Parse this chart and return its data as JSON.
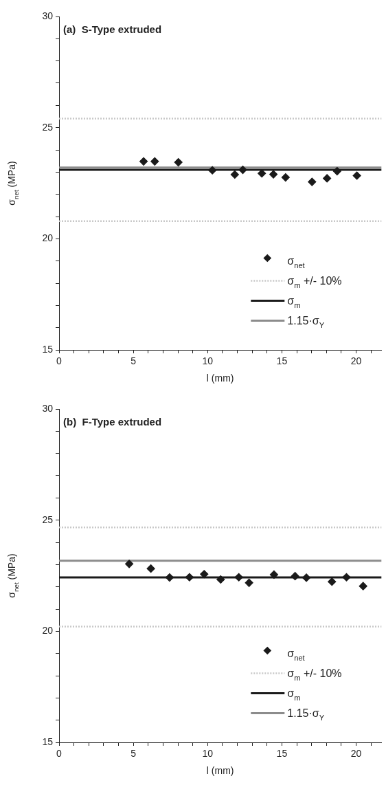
{
  "chart_data": [
    {
      "type": "scatter",
      "title": "(a)  S-Type extruded",
      "xlabel": "l (mm)",
      "ylabel": "σ$_{net}$ (MPa)",
      "series": [
        {
          "name": "σ$_{net}$",
          "color": "#1a1a1a",
          "x": [
            5.69,
            6.44,
            8.03,
            10.32,
            11.83,
            12.37,
            13.65,
            14.43,
            15.25,
            17.03,
            18.04,
            18.72,
            20.05
          ],
          "values": [
            23.48,
            23.48,
            23.44,
            23.08,
            22.89,
            23.1,
            22.94,
            22.9,
            22.76,
            22.56,
            22.72,
            23.04,
            22.84
          ]
        }
      ],
      "ref_lines": [
        {
          "axis": "y",
          "value": 25.41,
          "label": "σ$_{m}$ +/- 10%",
          "color": "#c8c8c8",
          "line_style": "dotted"
        },
        {
          "axis": "y",
          "value": 20.79,
          "color": "#c8c8c8",
          "line_style": "dotted"
        },
        {
          "axis": "y",
          "value": 23.1,
          "label": "σ$_{m}$",
          "color": "#1a1a1a",
          "line_style": "solid"
        },
        {
          "axis": "y",
          "value": 23.2,
          "label": "1.15·σ$_{Y}$",
          "color": "#8c8c8c",
          "line_style": "solid"
        }
      ],
      "xlim": [
        0,
        21.7
      ],
      "ylim": [
        15,
        30
      ],
      "xticks": [
        0,
        {
          "value": 1,
          "label": null
        },
        {
          "value": 2,
          "label": null
        },
        {
          "value": 3,
          "label": null
        },
        {
          "value": 4,
          "label": null
        },
        5,
        {
          "value": 6,
          "label": null
        },
        {
          "value": 7,
          "label": null
        },
        {
          "value": 8,
          "label": null
        },
        {
          "value": 9,
          "label": null
        },
        10,
        {
          "value": 11,
          "label": null
        },
        {
          "value": 12,
          "label": null
        },
        {
          "value": 13,
          "label": null
        },
        {
          "value": 14,
          "label": null
        },
        15,
        {
          "value": 16,
          "label": null
        },
        {
          "value": 17,
          "label": null
        },
        {
          "value": 18,
          "label": null
        },
        {
          "value": 19,
          "label": null
        },
        20,
        {
          "value": 21,
          "label": null
        }
      ],
      "yticks": [
        15,
        {
          "value": 16,
          "label": null
        },
        {
          "value": 17,
          "label": null
        },
        {
          "value": 18,
          "label": null
        },
        {
          "value": 19,
          "label": null
        },
        20,
        {
          "value": 21,
          "label": null
        },
        {
          "value": 22,
          "label": null
        },
        {
          "value": 23,
          "label": null
        },
        {
          "value": 24,
          "label": null
        },
        25,
        {
          "value": 26,
          "label": null
        },
        {
          "value": 27,
          "label": null
        },
        {
          "value": 28,
          "label": null
        },
        {
          "value": 29,
          "label": null
        },
        30
      ],
      "grid": false,
      "legend": "bottom right",
      "marker": "diamond"
    },
    {
      "type": "scatter",
      "title": "(b)  F-Type extruded",
      "xlabel": "l (mm)",
      "ylabel": "σ$_{net}$ (MPa)",
      "series": [
        {
          "name": "σ$_{net}$",
          "color": "#1a1a1a",
          "x": [
            4.72,
            6.18,
            7.44,
            8.78,
            9.77,
            10.88,
            12.1,
            12.79,
            14.47,
            15.89,
            16.65,
            18.37,
            19.35,
            20.47
          ],
          "values": [
            23.03,
            22.82,
            22.42,
            22.43,
            22.57,
            22.33,
            22.43,
            22.18,
            22.55,
            22.48,
            22.41,
            22.23,
            22.43,
            22.03
          ]
        }
      ],
      "ref_lines": [
        {
          "axis": "y",
          "value": 24.67,
          "label": "σ$_{m}$ +/- 10%",
          "color": "#c8c8c8",
          "line_style": "dotted"
        },
        {
          "axis": "y",
          "value": 20.21,
          "color": "#c8c8c8",
          "line_style": "dotted"
        },
        {
          "axis": "y",
          "value": 22.42,
          "label": "σ$_{m}$",
          "color": "#1a1a1a",
          "line_style": "solid"
        },
        {
          "axis": "y",
          "value": 23.17,
          "label": "1.15·σ$_{Y}$",
          "color": "#8c8c8c",
          "line_style": "solid"
        }
      ],
      "xlim": [
        0,
        21.7
      ],
      "ylim": [
        15,
        30
      ],
      "xticks": [
        0,
        {
          "value": 1,
          "label": null
        },
        {
          "value": 2,
          "label": null
        },
        {
          "value": 3,
          "label": null
        },
        {
          "value": 4,
          "label": null
        },
        5,
        {
          "value": 6,
          "label": null
        },
        {
          "value": 7,
          "label": null
        },
        {
          "value": 8,
          "label": null
        },
        {
          "value": 9,
          "label": null
        },
        10,
        {
          "value": 11,
          "label": null
        },
        {
          "value": 12,
          "label": null
        },
        {
          "value": 13,
          "label": null
        },
        {
          "value": 14,
          "label": null
        },
        15,
        {
          "value": 16,
          "label": null
        },
        {
          "value": 17,
          "label": null
        },
        {
          "value": 18,
          "label": null
        },
        {
          "value": 19,
          "label": null
        },
        20,
        {
          "value": 21,
          "label": null
        }
      ],
      "yticks": [
        15,
        {
          "value": 16,
          "label": null
        },
        {
          "value": 17,
          "label": null
        },
        {
          "value": 18,
          "label": null
        },
        {
          "value": 19,
          "label": null
        },
        20,
        {
          "value": 21,
          "label": null
        },
        {
          "value": 22,
          "label": null
        },
        {
          "value": 23,
          "label": null
        },
        {
          "value": 24,
          "label": null
        },
        25,
        {
          "value": 26,
          "label": null
        },
        {
          "value": 27,
          "label": null
        },
        {
          "value": 28,
          "label": null
        },
        {
          "value": 29,
          "label": null
        },
        30
      ],
      "grid": false,
      "legend": "bottom right",
      "marker": "diamond"
    }
  ]
}
